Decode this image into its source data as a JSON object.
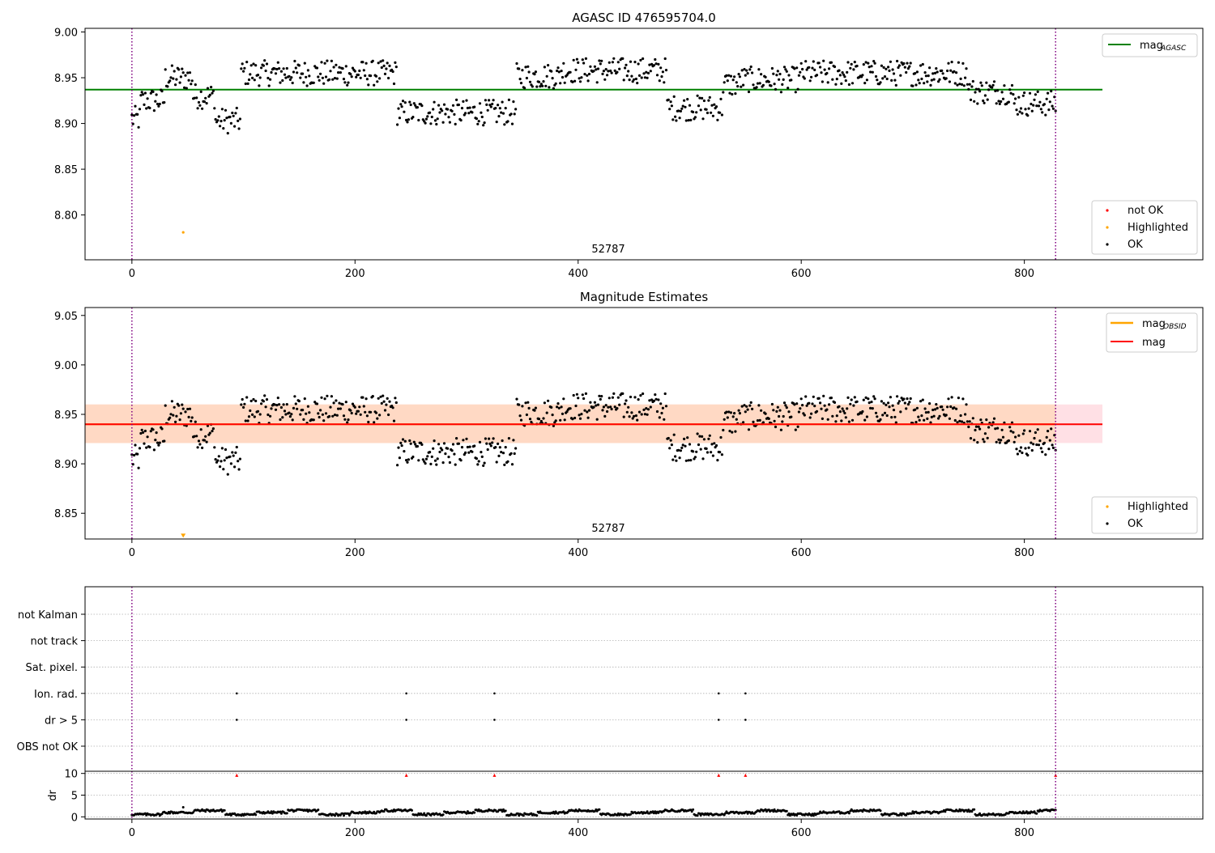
{
  "figure": {
    "colors": {
      "ok": "#000000",
      "not_ok": "#ff0000",
      "highlighted": "#ffa500",
      "agasc": "#008000",
      "mag_line": "#ff0000",
      "mag_obsid": "#ffa500",
      "obs_boundary": "#800080",
      "band_pink": "#ffdde2",
      "band_orange": "#ffd8c0",
      "grid": "#b0b0b0"
    }
  },
  "chart_data": [
    {
      "id": "panel-agasc",
      "type": "scatter",
      "title": "AGASC ID 476595704.0",
      "xlabel": "",
      "ylabel": "",
      "xlim": [
        -42,
        960
      ],
      "ylim": [
        8.751,
        9.004
      ],
      "xticks": [
        0,
        200,
        400,
        600,
        800
      ],
      "yticks": [
        8.8,
        8.85,
        8.9,
        8.95,
        9.0
      ],
      "ytick_labels": [
        "8.80",
        "8.85",
        "8.90",
        "8.95",
        "9.00"
      ],
      "grid": false,
      "obs_boundaries": [
        0,
        828
      ],
      "obsid_labels": [
        {
          "x": 414,
          "text": "52787"
        }
      ],
      "hlines": [
        {
          "y": 8.937,
          "x": [
            -42,
            870
          ],
          "name": "mag_AGASC"
        }
      ],
      "highlighted_points": [
        {
          "x": 46,
          "y": 8.781
        }
      ],
      "legends": [
        {
          "position": "top-right",
          "entries": [
            {
              "label": "mag",
              "sub": "AGASC",
              "marker": "line",
              "color": "#008000"
            }
          ]
        },
        {
          "position": "lower-right",
          "entries": [
            {
              "label": "not OK",
              "marker": "dot",
              "color": "#ff0000"
            },
            {
              "label": "Highlighted",
              "marker": "dot",
              "color": "#ffa500"
            },
            {
              "label": "OK",
              "marker": "dot",
              "color": "#000000"
            }
          ]
        }
      ]
    },
    {
      "id": "panel-estimates",
      "type": "scatter",
      "title": "Magnitude Estimates",
      "xlabel": "",
      "ylabel": "",
      "xlim": [
        -42,
        960
      ],
      "ylim": [
        8.824,
        9.058
      ],
      "xticks": [
        0,
        200,
        400,
        600,
        800
      ],
      "yticks": [
        8.85,
        8.9,
        8.95,
        9.0,
        9.05
      ],
      "ytick_labels": [
        "8.85",
        "8.90",
        "8.95",
        "9.00",
        "9.05"
      ],
      "grid": false,
      "obs_boundaries": [
        0,
        828
      ],
      "obsid_labels": [
        {
          "x": 414,
          "text": "52787"
        }
      ],
      "bands": [
        {
          "y": [
            8.921,
            8.96
          ],
          "x": [
            -42,
            870
          ],
          "color": "#ffdde2"
        },
        {
          "y": [
            8.921,
            8.96
          ],
          "x": [
            -42,
            828
          ],
          "color": "#ffd8c0"
        }
      ],
      "hlines": [
        {
          "y": 8.94,
          "x": [
            -42,
            828
          ],
          "name": "mag_OBSID",
          "color": "#ffa500"
        },
        {
          "y": 8.94,
          "x": [
            -42,
            870
          ],
          "name": "mag",
          "color": "#ff0000"
        }
      ],
      "highlighted_points": [
        {
          "x": 46,
          "y": 8.827,
          "marker": "triangle-down"
        }
      ],
      "legends": [
        {
          "position": "top-right",
          "entries": [
            {
              "label": "mag",
              "sub": "OBSID",
              "marker": "line",
              "color": "#ffa500"
            },
            {
              "label": "mag",
              "marker": "line",
              "color": "#ff0000"
            }
          ]
        },
        {
          "position": "lower-right",
          "entries": [
            {
              "label": "Highlighted",
              "marker": "dot",
              "color": "#ffa500"
            },
            {
              "label": "OK",
              "marker": "dot",
              "color": "#000000"
            }
          ]
        }
      ]
    },
    {
      "id": "panel-flags",
      "type": "scatter",
      "title": "",
      "xlim": [
        -42,
        960
      ],
      "categories": [
        "not Kalman",
        "not track",
        "Sat. pixel.",
        "Ion. rad.",
        "dr > 5",
        "OBS not OK"
      ],
      "grid": true,
      "obs_boundaries": [
        0,
        828
      ],
      "flag_points": [
        {
          "category": "Ion. rad.",
          "x": [
            94,
            246,
            325,
            526,
            550
          ]
        },
        {
          "category": "dr > 5",
          "x": [
            94,
            246,
            325,
            526,
            550
          ]
        }
      ]
    },
    {
      "id": "panel-dr",
      "type": "scatter",
      "title": "",
      "xlabel": "",
      "ylabel": "dr",
      "xlim": [
        -42,
        960
      ],
      "ylim": [
        -0.5,
        10.5
      ],
      "xticks": [
        0,
        200,
        400,
        600,
        800
      ],
      "yticks": [
        0,
        5,
        10
      ],
      "ytick_labels": [
        "0",
        "5",
        "10"
      ],
      "grid": true,
      "obs_boundaries": [
        0,
        828
      ],
      "outliers": {
        "y": 9.6,
        "x": [
          94,
          246,
          325,
          526,
          550,
          828
        ],
        "marker": "triangle-up",
        "color": "#ff0000"
      }
    }
  ]
}
